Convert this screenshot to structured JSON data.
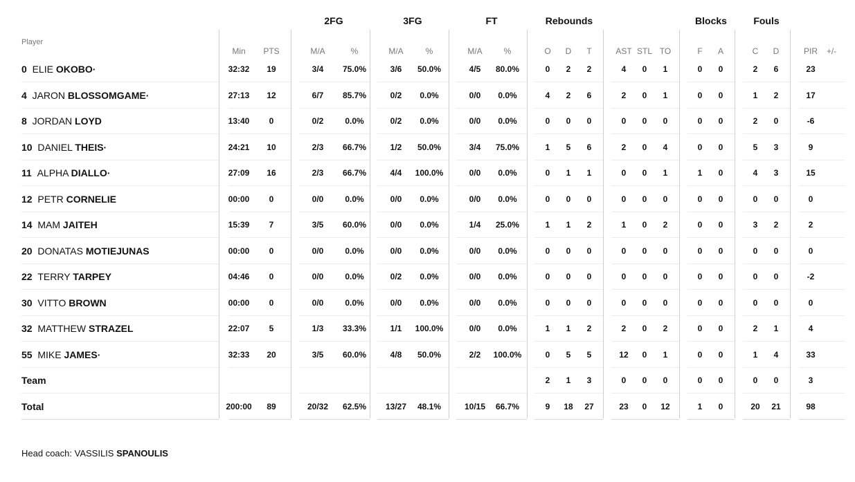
{
  "group_headers": {
    "fg2": "2FG",
    "fg3": "3FG",
    "ft": "FT",
    "rebounds": "Rebounds",
    "blocks": "Blocks",
    "fouls": "Fouls"
  },
  "columns": {
    "player": "Player",
    "min": "Min",
    "pts": "PTS",
    "fg2_ma": "M/A",
    "fg2_pct": "%",
    "fg3_ma": "M/A",
    "fg3_pct": "%",
    "ft_ma": "M/A",
    "ft_pct": "%",
    "reb_o": "O",
    "reb_d": "D",
    "reb_t": "T",
    "ast": "AST",
    "stl": "STL",
    "to": "TO",
    "blk_f": "F",
    "blk_a": "A",
    "foul_c": "C",
    "foul_d": "D",
    "pir": "PIR",
    "pm": "+/-"
  },
  "rows": [
    {
      "num": "0",
      "first": "ELIE",
      "last": "OKOBO·",
      "min": "32:32",
      "pts": "19",
      "fg2_ma": "3/4",
      "fg2_pct": "75.0%",
      "fg3_ma": "3/6",
      "fg3_pct": "50.0%",
      "ft_ma": "4/5",
      "ft_pct": "80.0%",
      "reb_o": "0",
      "reb_d": "2",
      "reb_t": "2",
      "ast": "4",
      "stl": "0",
      "to": "1",
      "blk_f": "0",
      "blk_a": "0",
      "foul_c": "2",
      "foul_d": "6",
      "pir": "23",
      "pm": ""
    },
    {
      "num": "4",
      "first": "JARON",
      "last": "BLOSSOMGAME·",
      "min": "27:13",
      "pts": "12",
      "fg2_ma": "6/7",
      "fg2_pct": "85.7%",
      "fg3_ma": "0/2",
      "fg3_pct": "0.0%",
      "ft_ma": "0/0",
      "ft_pct": "0.0%",
      "reb_o": "4",
      "reb_d": "2",
      "reb_t": "6",
      "ast": "2",
      "stl": "0",
      "to": "1",
      "blk_f": "0",
      "blk_a": "0",
      "foul_c": "1",
      "foul_d": "2",
      "pir": "17",
      "pm": ""
    },
    {
      "num": "8",
      "first": "JORDAN",
      "last": "LOYD",
      "min": "13:40",
      "pts": "0",
      "fg2_ma": "0/2",
      "fg2_pct": "0.0%",
      "fg3_ma": "0/2",
      "fg3_pct": "0.0%",
      "ft_ma": "0/0",
      "ft_pct": "0.0%",
      "reb_o": "0",
      "reb_d": "0",
      "reb_t": "0",
      "ast": "0",
      "stl": "0",
      "to": "0",
      "blk_f": "0",
      "blk_a": "0",
      "foul_c": "2",
      "foul_d": "0",
      "pir": "-6",
      "pm": ""
    },
    {
      "num": "10",
      "first": "DANIEL",
      "last": "THEIS·",
      "min": "24:21",
      "pts": "10",
      "fg2_ma": "2/3",
      "fg2_pct": "66.7%",
      "fg3_ma": "1/2",
      "fg3_pct": "50.0%",
      "ft_ma": "3/4",
      "ft_pct": "75.0%",
      "reb_o": "1",
      "reb_d": "5",
      "reb_t": "6",
      "ast": "2",
      "stl": "0",
      "to": "4",
      "blk_f": "0",
      "blk_a": "0",
      "foul_c": "5",
      "foul_d": "3",
      "pir": "9",
      "pm": ""
    },
    {
      "num": "11",
      "first": "ALPHA",
      "last": "DIALLO·",
      "min": "27:09",
      "pts": "16",
      "fg2_ma": "2/3",
      "fg2_pct": "66.7%",
      "fg3_ma": "4/4",
      "fg3_pct": "100.0%",
      "ft_ma": "0/0",
      "ft_pct": "0.0%",
      "reb_o": "0",
      "reb_d": "1",
      "reb_t": "1",
      "ast": "0",
      "stl": "0",
      "to": "1",
      "blk_f": "1",
      "blk_a": "0",
      "foul_c": "4",
      "foul_d": "3",
      "pir": "15",
      "pm": ""
    },
    {
      "num": "12",
      "first": "PETR",
      "last": "CORNELIE",
      "min": "00:00",
      "pts": "0",
      "fg2_ma": "0/0",
      "fg2_pct": "0.0%",
      "fg3_ma": "0/0",
      "fg3_pct": "0.0%",
      "ft_ma": "0/0",
      "ft_pct": "0.0%",
      "reb_o": "0",
      "reb_d": "0",
      "reb_t": "0",
      "ast": "0",
      "stl": "0",
      "to": "0",
      "blk_f": "0",
      "blk_a": "0",
      "foul_c": "0",
      "foul_d": "0",
      "pir": "0",
      "pm": ""
    },
    {
      "num": "14",
      "first": "MAM",
      "last": "JAITEH",
      "min": "15:39",
      "pts": "7",
      "fg2_ma": "3/5",
      "fg2_pct": "60.0%",
      "fg3_ma": "0/0",
      "fg3_pct": "0.0%",
      "ft_ma": "1/4",
      "ft_pct": "25.0%",
      "reb_o": "1",
      "reb_d": "1",
      "reb_t": "2",
      "ast": "1",
      "stl": "0",
      "to": "2",
      "blk_f": "0",
      "blk_a": "0",
      "foul_c": "3",
      "foul_d": "2",
      "pir": "2",
      "pm": ""
    },
    {
      "num": "20",
      "first": "DONATAS",
      "last": "MOTIEJUNAS",
      "min": "00:00",
      "pts": "0",
      "fg2_ma": "0/0",
      "fg2_pct": "0.0%",
      "fg3_ma": "0/0",
      "fg3_pct": "0.0%",
      "ft_ma": "0/0",
      "ft_pct": "0.0%",
      "reb_o": "0",
      "reb_d": "0",
      "reb_t": "0",
      "ast": "0",
      "stl": "0",
      "to": "0",
      "blk_f": "0",
      "blk_a": "0",
      "foul_c": "0",
      "foul_d": "0",
      "pir": "0",
      "pm": ""
    },
    {
      "num": "22",
      "first": "TERRY",
      "last": "TARPEY",
      "min": "04:46",
      "pts": "0",
      "fg2_ma": "0/0",
      "fg2_pct": "0.0%",
      "fg3_ma": "0/2",
      "fg3_pct": "0.0%",
      "ft_ma": "0/0",
      "ft_pct": "0.0%",
      "reb_o": "0",
      "reb_d": "0",
      "reb_t": "0",
      "ast": "0",
      "stl": "0",
      "to": "0",
      "blk_f": "0",
      "blk_a": "0",
      "foul_c": "0",
      "foul_d": "0",
      "pir": "-2",
      "pm": ""
    },
    {
      "num": "30",
      "first": "VITTO",
      "last": "BROWN",
      "min": "00:00",
      "pts": "0",
      "fg2_ma": "0/0",
      "fg2_pct": "0.0%",
      "fg3_ma": "0/0",
      "fg3_pct": "0.0%",
      "ft_ma": "0/0",
      "ft_pct": "0.0%",
      "reb_o": "0",
      "reb_d": "0",
      "reb_t": "0",
      "ast": "0",
      "stl": "0",
      "to": "0",
      "blk_f": "0",
      "blk_a": "0",
      "foul_c": "0",
      "foul_d": "0",
      "pir": "0",
      "pm": ""
    },
    {
      "num": "32",
      "first": "MATTHEW",
      "last": "STRAZEL",
      "min": "22:07",
      "pts": "5",
      "fg2_ma": "1/3",
      "fg2_pct": "33.3%",
      "fg3_ma": "1/1",
      "fg3_pct": "100.0%",
      "ft_ma": "0/0",
      "ft_pct": "0.0%",
      "reb_o": "1",
      "reb_d": "1",
      "reb_t": "2",
      "ast": "2",
      "stl": "0",
      "to": "2",
      "blk_f": "0",
      "blk_a": "0",
      "foul_c": "2",
      "foul_d": "1",
      "pir": "4",
      "pm": ""
    },
    {
      "num": "55",
      "first": "MIKE",
      "last": "JAMES·",
      "min": "32:33",
      "pts": "20",
      "fg2_ma": "3/5",
      "fg2_pct": "60.0%",
      "fg3_ma": "4/8",
      "fg3_pct": "50.0%",
      "ft_ma": "2/2",
      "ft_pct": "100.0%",
      "reb_o": "0",
      "reb_d": "5",
      "reb_t": "5",
      "ast": "12",
      "stl": "0",
      "to": "1",
      "blk_f": "0",
      "blk_a": "0",
      "foul_c": "1",
      "foul_d": "4",
      "pir": "33",
      "pm": ""
    },
    {
      "num": "",
      "first": "",
      "last": "Team",
      "min": "",
      "pts": "",
      "fg2_ma": "",
      "fg2_pct": "",
      "fg3_ma": "",
      "fg3_pct": "",
      "ft_ma": "",
      "ft_pct": "",
      "reb_o": "2",
      "reb_d": "1",
      "reb_t": "3",
      "ast": "0",
      "stl": "0",
      "to": "0",
      "blk_f": "0",
      "blk_a": "0",
      "foul_c": "0",
      "foul_d": "0",
      "pir": "3",
      "pm": ""
    },
    {
      "num": "",
      "first": "",
      "last": "Total",
      "min": "200:00",
      "pts": "89",
      "fg2_ma": "20/32",
      "fg2_pct": "62.5%",
      "fg3_ma": "13/27",
      "fg3_pct": "48.1%",
      "ft_ma": "10/15",
      "ft_pct": "66.7%",
      "reb_o": "9",
      "reb_d": "18",
      "reb_t": "27",
      "ast": "23",
      "stl": "0",
      "to": "12",
      "blk_f": "1",
      "blk_a": "0",
      "foul_c": "20",
      "foul_d": "21",
      "pir": "98",
      "pm": ""
    }
  ],
  "coach": {
    "label": "Head coach:",
    "first": "VASSILIS",
    "last": "SPANOULIS"
  }
}
